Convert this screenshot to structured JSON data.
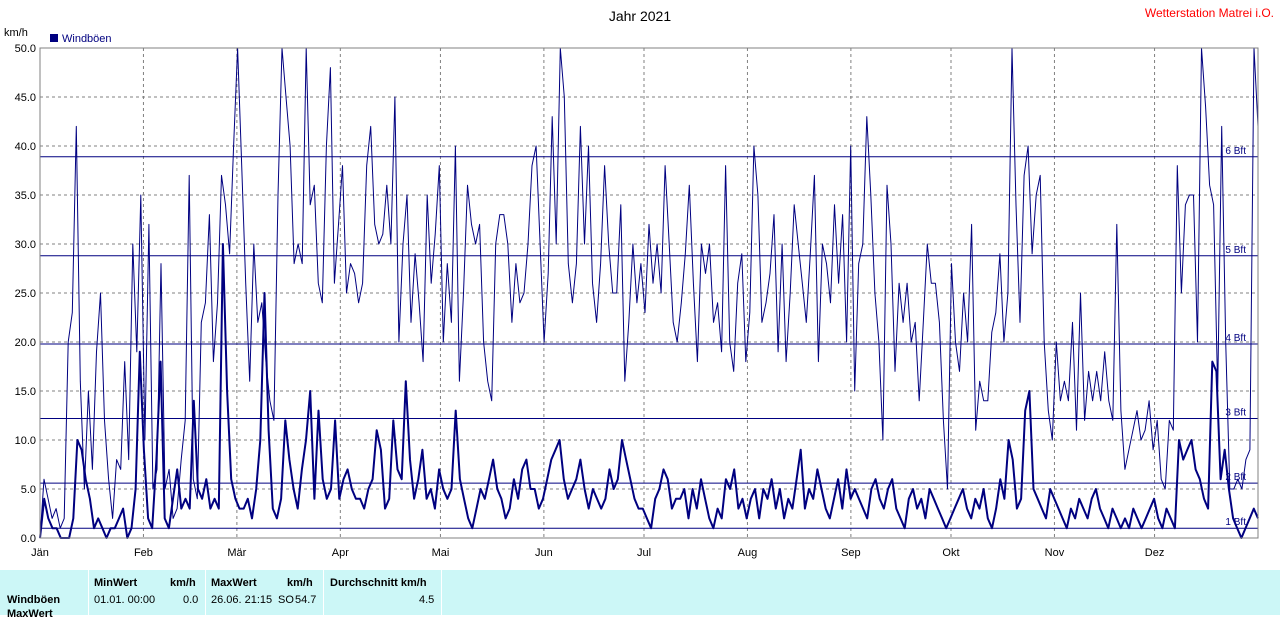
{
  "station": "Wetterstation Matrei i.O.",
  "chart_data": {
    "type": "line",
    "title": "Jahr 2021",
    "ylabel": "km/h",
    "ylim": [
      0,
      50
    ],
    "yticks": [
      "0.0",
      "5.0",
      "10.0",
      "15.0",
      "20.0",
      "25.0",
      "30.0",
      "35.0",
      "40.0",
      "45.0",
      "50.0"
    ],
    "xlim": [
      0,
      365
    ],
    "grid": true,
    "legend": {
      "position": "top-left",
      "entries": [
        "Windböen"
      ]
    },
    "colors": {
      "series": "#000080",
      "grid": "#808080",
      "station": "#ff0000"
    },
    "months": [
      {
        "label": "Jän",
        "day": 0
      },
      {
        "label": "Feb",
        "day": 31
      },
      {
        "label": "Mär",
        "day": 59
      },
      {
        "label": "Apr",
        "day": 90
      },
      {
        "label": "Mai",
        "day": 120
      },
      {
        "label": "Jun",
        "day": 151
      },
      {
        "label": "Jul",
        "day": 181
      },
      {
        "label": "Aug",
        "day": 212
      },
      {
        "label": "Sep",
        "day": 243
      },
      {
        "label": "Okt",
        "day": 273
      },
      {
        "label": "Nov",
        "day": 304
      },
      {
        "label": "Dez",
        "day": 334
      }
    ],
    "beaufort": [
      {
        "label": "1 Bft",
        "value": 1
      },
      {
        "label": "2 Bft",
        "value": 5.6
      },
      {
        "label": "3 Bft",
        "value": 12.2
      },
      {
        "label": "4 Bft",
        "value": 19.8
      },
      {
        "label": "5 Bft",
        "value": 28.8
      },
      {
        "label": "6 Bft",
        "value": 38.9
      }
    ],
    "series": [
      {
        "name": "Windböen max",
        "role": "max",
        "y": [
          0,
          6,
          4,
          2,
          3,
          1,
          2,
          20,
          23,
          42,
          16,
          5,
          15,
          7,
          19,
          25,
          12,
          6,
          2,
          8,
          7,
          18,
          8,
          30,
          19,
          35,
          10,
          32,
          5,
          7,
          28,
          5,
          7,
          2,
          3,
          8,
          12,
          37,
          6,
          4,
          22,
          24,
          33,
          18,
          24,
          37,
          34,
          29,
          40,
          50,
          38,
          26,
          16,
          30,
          22,
          24,
          18,
          14,
          12,
          35,
          50,
          45,
          40,
          28,
          30,
          28,
          50,
          34,
          36,
          26,
          24,
          40,
          48,
          26,
          32,
          38,
          25,
          28,
          27,
          24,
          26,
          38,
          42,
          32,
          30,
          31,
          36,
          30,
          45,
          20,
          30,
          35,
          22,
          29,
          24,
          18,
          35,
          26,
          31,
          38,
          20,
          28,
          22,
          40,
          16,
          25,
          36,
          32,
          30,
          32,
          20,
          16,
          14,
          30,
          33,
          33,
          30,
          22,
          28,
          24,
          25,
          30,
          38,
          40,
          30,
          20,
          27,
          43,
          30,
          52,
          45,
          28,
          24,
          28,
          42,
          30,
          40,
          26,
          22,
          28,
          38,
          30,
          25,
          25,
          34,
          16,
          22,
          30,
          24,
          28,
          23,
          32,
          26,
          30,
          25,
          38,
          30,
          22,
          20,
          24,
          29,
          36,
          26,
          18,
          30,
          27,
          30,
          22,
          24,
          19,
          38,
          20,
          17,
          26,
          29,
          18,
          23,
          40,
          35,
          22,
          24,
          27,
          33,
          19,
          30,
          18,
          25,
          34,
          30,
          26,
          22,
          29,
          37,
          18,
          30,
          28,
          24,
          34,
          26,
          33,
          20,
          40,
          15,
          28,
          30,
          43,
          35,
          25,
          20,
          10,
          36,
          30,
          17,
          26,
          22,
          26,
          20,
          22,
          14,
          22,
          30,
          26,
          26,
          22,
          12,
          5,
          28,
          20,
          17,
          25,
          20,
          32,
          11,
          16,
          14,
          14,
          21,
          23,
          29,
          20,
          25,
          50,
          34,
          22,
          37,
          40,
          29,
          35,
          37,
          20,
          13,
          10,
          20,
          14,
          16,
          14,
          22,
          11,
          25,
          12,
          17,
          14,
          17,
          14,
          19,
          14,
          12,
          32,
          13,
          7,
          9,
          11,
          13,
          10,
          11,
          14,
          9,
          12,
          6,
          5,
          12,
          11,
          38,
          25,
          34,
          35,
          35,
          20,
          50,
          44,
          36,
          34,
          15,
          42,
          20,
          5,
          5,
          6,
          5,
          8,
          9,
          50,
          42
        ]
      },
      {
        "name": "Windböen avg",
        "role": "avg",
        "y": [
          0,
          4,
          2,
          1,
          1,
          0,
          0,
          0,
          2,
          10,
          9,
          6,
          4,
          1,
          2,
          1,
          0,
          1,
          1,
          2,
          3,
          0,
          1,
          5,
          19,
          9,
          2,
          1,
          8,
          18,
          2,
          1,
          4,
          7,
          3,
          4,
          3,
          14,
          5,
          4,
          6,
          3,
          4,
          3,
          30,
          15,
          6,
          4,
          3,
          3,
          4,
          2,
          5,
          10,
          25,
          11,
          3,
          2,
          4,
          12,
          8,
          5,
          3,
          7,
          10,
          15,
          4,
          13,
          6,
          4,
          5,
          12,
          4,
          6,
          7,
          5,
          4,
          4,
          3,
          5,
          6,
          11,
          9,
          3,
          4,
          12,
          7,
          6,
          16,
          8,
          4,
          6,
          9,
          4,
          5,
          3,
          7,
          5,
          4,
          5,
          13,
          6,
          4,
          2,
          1,
          3,
          5,
          4,
          6,
          8,
          5,
          4,
          2,
          3,
          6,
          4,
          7,
          8,
          5,
          5,
          3,
          4,
          6,
          8,
          9,
          10,
          6,
          4,
          5,
          6,
          8,
          5,
          3,
          5,
          4,
          3,
          4,
          7,
          5,
          6,
          10,
          8,
          6,
          4,
          3,
          3,
          2,
          1,
          4,
          5,
          7,
          6,
          3,
          4,
          4,
          5,
          2,
          5,
          3,
          6,
          4,
          2,
          1,
          3,
          2,
          6,
          5,
          7,
          3,
          4,
          2,
          4,
          5,
          2,
          5,
          4,
          6,
          3,
          5,
          2,
          4,
          3,
          6,
          9,
          3,
          5,
          4,
          7,
          5,
          3,
          2,
          4,
          6,
          3,
          7,
          4,
          5,
          4,
          3,
          2,
          5,
          6,
          4,
          3,
          5,
          6,
          3,
          2,
          1,
          4,
          5,
          3,
          4,
          2,
          5,
          4,
          3,
          2,
          1,
          2,
          3,
          4,
          5,
          3,
          2,
          4,
          3,
          5,
          2,
          1,
          3,
          6,
          4,
          10,
          8,
          3,
          4,
          13,
          15,
          5,
          4,
          3,
          2,
          5,
          4,
          3,
          2,
          1,
          3,
          2,
          4,
          3,
          2,
          4,
          5,
          3,
          2,
          1,
          3,
          2,
          1,
          2,
          1,
          3,
          2,
          1,
          2,
          3,
          4,
          2,
          1,
          3,
          2,
          1,
          10,
          8,
          9,
          10,
          7,
          6,
          4,
          3,
          18,
          17,
          6,
          9,
          5,
          2,
          1,
          0,
          1,
          2,
          3,
          2
        ]
      }
    ]
  },
  "footer": {
    "row1_label": "Windböen",
    "row2_label": "MaxWert",
    "min_header": "MinWert",
    "min_unit": "km/h",
    "min_time": "01.01.  00:00",
    "min_value": "0.0",
    "max_header": "MaxWert",
    "max_unit": "km/h",
    "max_time": "26.06.  21:15",
    "max_dir": "SO",
    "max_value": "54.7",
    "avg_header": "Durchschnitt km/h",
    "avg_value": "4.5"
  }
}
